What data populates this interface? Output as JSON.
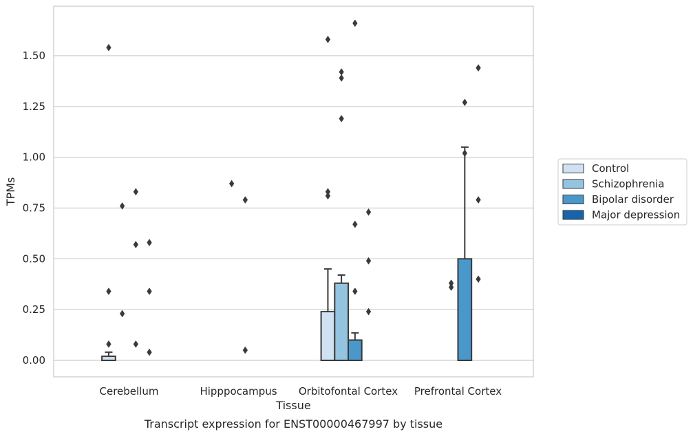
{
  "chart_data": {
    "type": "bar",
    "title": "",
    "caption": "Transcript expression for ENST00000467997 by tissue",
    "xlabel": "Tissue",
    "ylabel": "TPMs",
    "ylim": [
      -0.08,
      1.75
    ],
    "yticks": [
      0.0,
      0.25,
      0.5,
      0.75,
      1.0,
      1.25,
      1.5
    ],
    "ytick_labels": [
      "0.00",
      "0.25",
      "0.50",
      "0.75",
      "1.00",
      "1.25",
      "1.50"
    ],
    "grid": true,
    "legend_position": "right",
    "categories": [
      "Cerebellum",
      "Hipppocampus",
      "Orbitofontal Cortex",
      "Prefrontal Cortex"
    ],
    "series": [
      {
        "name": "Control",
        "color": "#d0e1f2",
        "values": [
          0.02,
          0.0,
          0.24,
          0.0
        ],
        "error_upper": [
          0.04,
          0.0,
          0.45,
          0.0
        ],
        "outliers": [
          [
            1.54,
            0.34,
            0.08
          ],
          [],
          [
            1.58,
            0.83,
            0.81
          ],
          []
        ]
      },
      {
        "name": "Schizophrenia",
        "color": "#94c4df",
        "values": [
          0.0,
          0.0,
          0.38,
          0.0
        ],
        "error_upper": [
          0.0,
          0.0,
          0.42,
          0.0
        ],
        "outliers": [
          [
            0.76,
            0.23
          ],
          [
            0.87
          ],
          [
            1.42,
            1.39,
            1.19
          ],
          [
            0.38,
            0.36
          ]
        ]
      },
      {
        "name": "Bipolar disorder",
        "color": "#4a98c9",
        "values": [
          0.0,
          0.0,
          0.1,
          0.5
        ],
        "error_upper": [
          0.0,
          0.0,
          0.135,
          1.05
        ],
        "outliers": [
          [
            0.83,
            0.57,
            0.08
          ],
          [
            0.79,
            0.05
          ],
          [
            1.66,
            0.67,
            0.34
          ],
          [
            1.02,
            1.27
          ]
        ]
      },
      {
        "name": "Major depression",
        "color": "#1764ab",
        "values": [
          0.0,
          0.0,
          0.0,
          0.0
        ],
        "error_upper": [
          0.0,
          0.0,
          0.0,
          0.0
        ],
        "outliers": [
          [
            0.58,
            0.34,
            0.04
          ],
          [],
          [
            0.73,
            0.49,
            0.24
          ],
          [
            1.44,
            0.79,
            0.4
          ]
        ]
      }
    ]
  },
  "colors": {
    "grid": "#cccccc",
    "frame": "#cccccc",
    "bar_edge": "#3a3a3a",
    "marker": "#3a3a3a"
  }
}
